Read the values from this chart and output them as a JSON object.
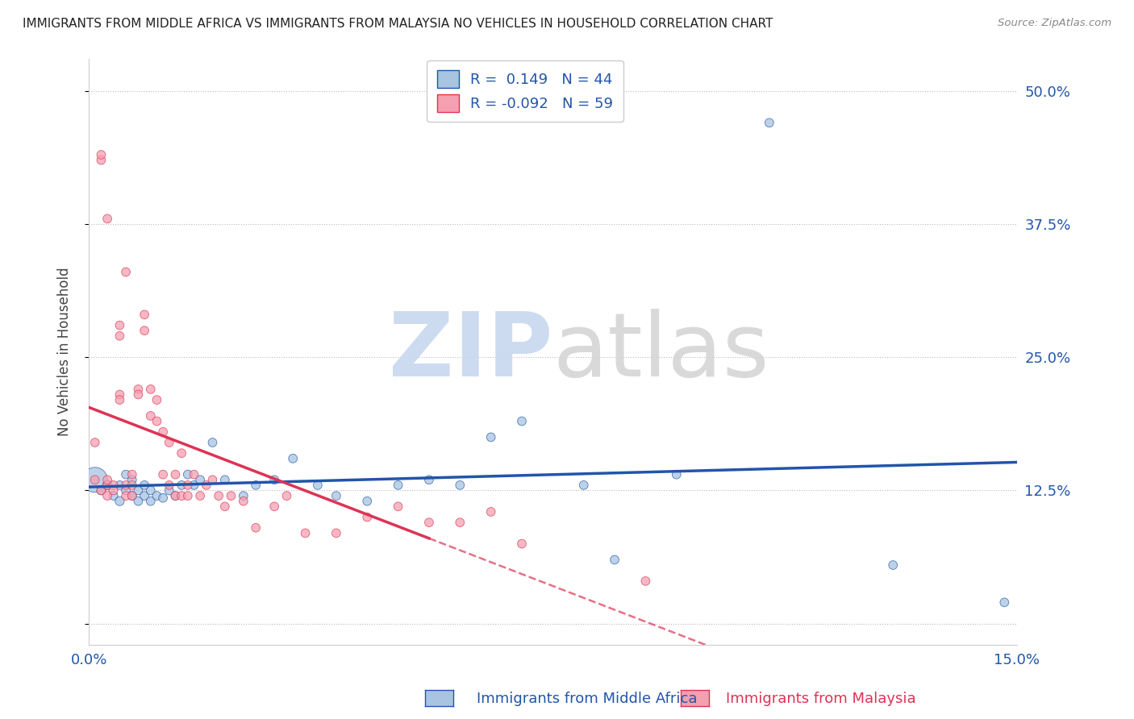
{
  "title": "IMMIGRANTS FROM MIDDLE AFRICA VS IMMIGRANTS FROM MALAYSIA NO VEHICLES IN HOUSEHOLD CORRELATION CHART",
  "source": "Source: ZipAtlas.com",
  "xlabel_blue": "Immigrants from Middle Africa",
  "xlabel_pink": "Immigrants from Malaysia",
  "ylabel": "No Vehicles in Household",
  "xmin": 0.0,
  "xmax": 0.15,
  "ymin": -0.02,
  "ymax": 0.53,
  "yticks": [
    0.0,
    0.125,
    0.25,
    0.375,
    0.5
  ],
  "ytick_labels": [
    "",
    "12.5%",
    "25.0%",
    "37.5%",
    "50.0%"
  ],
  "xticks": [
    0.0,
    0.05,
    0.1,
    0.15
  ],
  "xtick_labels": [
    "0.0%",
    "",
    "",
    "15.0%"
  ],
  "r_blue": 0.149,
  "n_blue": 44,
  "r_pink": -0.092,
  "n_pink": 59,
  "color_blue": "#a8c4e0",
  "color_pink": "#f4a0b0",
  "line_blue": "#2255aa",
  "line_pink": "#dd3355",
  "blue_scatter_x": [
    0.001,
    0.002,
    0.003,
    0.004,
    0.005,
    0.005,
    0.006,
    0.006,
    0.007,
    0.007,
    0.008,
    0.008,
    0.009,
    0.009,
    0.01,
    0.01,
    0.011,
    0.012,
    0.013,
    0.014,
    0.015,
    0.016,
    0.017,
    0.018,
    0.02,
    0.022,
    0.025,
    0.027,
    0.03,
    0.033,
    0.037,
    0.04,
    0.045,
    0.05,
    0.055,
    0.06,
    0.065,
    0.07,
    0.08,
    0.085,
    0.095,
    0.11,
    0.13,
    0.148
  ],
  "blue_scatter_y": [
    0.135,
    0.125,
    0.13,
    0.12,
    0.115,
    0.13,
    0.125,
    0.14,
    0.12,
    0.135,
    0.115,
    0.125,
    0.12,
    0.13,
    0.115,
    0.125,
    0.12,
    0.118,
    0.125,
    0.12,
    0.13,
    0.14,
    0.13,
    0.135,
    0.17,
    0.135,
    0.12,
    0.13,
    0.135,
    0.155,
    0.13,
    0.12,
    0.115,
    0.13,
    0.135,
    0.13,
    0.175,
    0.19,
    0.13,
    0.06,
    0.14,
    0.47,
    0.055,
    0.02
  ],
  "blue_scatter_sizes": [
    500,
    60,
    70,
    60,
    65,
    60,
    60,
    60,
    60,
    60,
    60,
    60,
    60,
    60,
    60,
    60,
    60,
    60,
    60,
    60,
    60,
    60,
    60,
    60,
    60,
    60,
    60,
    60,
    60,
    60,
    60,
    60,
    60,
    60,
    60,
    60,
    60,
    60,
    60,
    60,
    60,
    60,
    60,
    60
  ],
  "pink_scatter_x": [
    0.001,
    0.001,
    0.002,
    0.002,
    0.002,
    0.003,
    0.003,
    0.003,
    0.003,
    0.004,
    0.004,
    0.005,
    0.005,
    0.005,
    0.005,
    0.006,
    0.006,
    0.006,
    0.007,
    0.007,
    0.007,
    0.008,
    0.008,
    0.009,
    0.009,
    0.01,
    0.01,
    0.011,
    0.011,
    0.012,
    0.012,
    0.013,
    0.013,
    0.014,
    0.014,
    0.015,
    0.015,
    0.016,
    0.016,
    0.017,
    0.018,
    0.019,
    0.02,
    0.021,
    0.022,
    0.023,
    0.025,
    0.027,
    0.03,
    0.032,
    0.035,
    0.04,
    0.045,
    0.05,
    0.055,
    0.06,
    0.065,
    0.07,
    0.09
  ],
  "pink_scatter_y": [
    0.135,
    0.17,
    0.125,
    0.435,
    0.44,
    0.13,
    0.135,
    0.12,
    0.38,
    0.13,
    0.125,
    0.28,
    0.27,
    0.215,
    0.21,
    0.33,
    0.13,
    0.12,
    0.14,
    0.13,
    0.12,
    0.22,
    0.215,
    0.29,
    0.275,
    0.195,
    0.22,
    0.21,
    0.19,
    0.14,
    0.18,
    0.13,
    0.17,
    0.14,
    0.12,
    0.16,
    0.12,
    0.13,
    0.12,
    0.14,
    0.12,
    0.13,
    0.135,
    0.12,
    0.11,
    0.12,
    0.115,
    0.09,
    0.11,
    0.12,
    0.085,
    0.085,
    0.1,
    0.11,
    0.095,
    0.095,
    0.105,
    0.075,
    0.04
  ],
  "pink_scatter_sizes": [
    60,
    60,
    60,
    60,
    60,
    60,
    60,
    60,
    60,
    60,
    60,
    60,
    60,
    60,
    60,
    60,
    60,
    60,
    60,
    60,
    60,
    60,
    60,
    60,
    60,
    60,
    60,
    60,
    60,
    60,
    60,
    60,
    60,
    60,
    60,
    60,
    60,
    60,
    60,
    60,
    60,
    60,
    60,
    60,
    60,
    60,
    60,
    60,
    60,
    60,
    60,
    60,
    60,
    60,
    60,
    60,
    60,
    60,
    60
  ],
  "blue_trend_x0": 0.0,
  "blue_trend_x1": 0.15,
  "blue_trend_y0": 0.118,
  "blue_trend_y1": 0.143,
  "pink_trend_x0": 0.0,
  "pink_trend_x1_solid": 0.055,
  "pink_trend_x1_dash": 0.15,
  "pink_trend_y0": 0.155,
  "pink_trend_y1_solid": 0.095,
  "pink_trend_y1_dash": -0.01
}
